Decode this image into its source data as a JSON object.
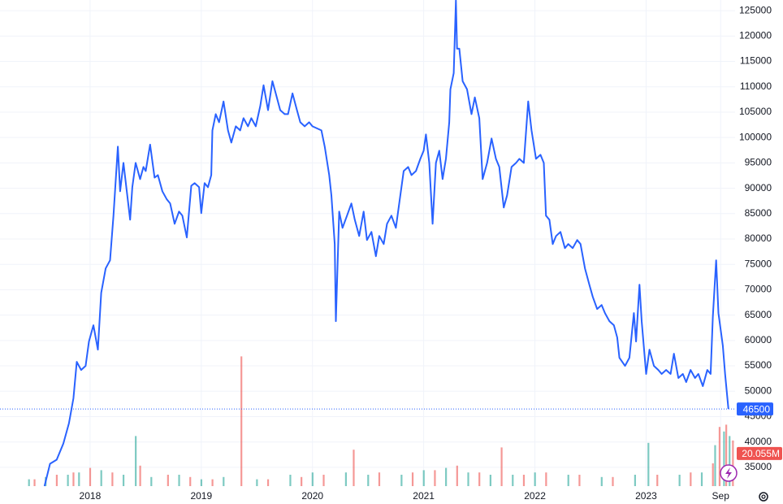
{
  "chart_data": {
    "type": "line",
    "series": [
      {
        "color": "#2962ff",
        "x": [
          2017.59,
          2017.64,
          2017.7,
          2017.76,
          2017.81,
          2017.85,
          2017.88,
          2017.92,
          2017.96,
          2017.99,
          2018.03,
          2018.07,
          2018.1,
          2018.14,
          2018.18,
          2018.21,
          2018.25,
          2018.27,
          2018.3,
          2018.33,
          2018.36,
          2018.38,
          2018.41,
          2018.45,
          2018.48,
          2018.5,
          2018.54,
          2018.58,
          2018.61,
          2018.65,
          2018.69,
          2018.72,
          2018.76,
          2018.8,
          2018.83,
          2018.87,
          2018.91,
          2018.94,
          2018.98,
          2019.0,
          2019.03,
          2019.06,
          2019.09,
          2019.1,
          2019.13,
          2019.16,
          2019.2,
          2019.24,
          2019.27,
          2019.31,
          2019.35,
          2019.38,
          2019.42,
          2019.45,
          2019.49,
          2019.53,
          2019.56,
          2019.6,
          2019.64,
          2019.67,
          2019.71,
          2019.75,
          2019.78,
          2019.82,
          2019.86,
          2019.89,
          2019.93,
          2019.97,
          2020.0,
          2020.08,
          2020.11,
          2020.15,
          2020.17,
          2020.2,
          2020.21,
          2020.24,
          2020.27,
          2020.31,
          2020.35,
          2020.38,
          2020.42,
          2020.46,
          2020.49,
          2020.53,
          2020.57,
          2020.6,
          2020.64,
          2020.67,
          2020.71,
          2020.75,
          2020.78,
          2020.82,
          2020.86,
          2020.89,
          2020.93,
          2020.97,
          2021.0,
          2021.02,
          2021.05,
          2021.08,
          2021.11,
          2021.14,
          2021.17,
          2021.2,
          2021.23,
          2021.24,
          2021.27,
          2021.29,
          2021.3,
          2021.32,
          2021.35,
          2021.39,
          2021.43,
          2021.46,
          2021.5,
          2021.53,
          2021.57,
          2021.61,
          2021.65,
          2021.68,
          2021.72,
          2021.75,
          2021.79,
          2021.83,
          2021.86,
          2021.9,
          2021.94,
          2021.97,
          2022.01,
          2022.05,
          2022.08,
          2022.1,
          2022.13,
          2022.16,
          2022.19,
          2022.23,
          2022.27,
          2022.3,
          2022.34,
          2022.38,
          2022.41,
          2022.45,
          2022.49,
          2022.52,
          2022.56,
          2022.6,
          2022.63,
          2022.67,
          2022.71,
          2022.74,
          2022.76,
          2022.81,
          2022.85,
          2022.89,
          2022.91,
          2022.94,
          2022.96,
          2023.0,
          2023.03,
          2023.07,
          2023.11,
          2023.14,
          2023.18,
          2023.22,
          2023.25,
          2023.29,
          2023.33,
          2023.36,
          2023.4,
          2023.44,
          2023.47,
          2023.51,
          2023.55,
          2023.58,
          2023.6,
          2023.63,
          2023.65,
          2023.67,
          2023.69,
          2023.71,
          2023.74
        ],
        "values": [
          31300,
          35700,
          36500,
          39700,
          43700,
          48600,
          55800,
          54200,
          55000,
          59800,
          63000,
          58200,
          69400,
          74200,
          75800,
          84600,
          98200,
          89400,
          95000,
          89400,
          83800,
          90200,
          95000,
          91800,
          94200,
          93400,
          98600,
          92100,
          92600,
          89400,
          87800,
          87000,
          83000,
          85400,
          84600,
          80300,
          90500,
          91000,
          90200,
          85100,
          91000,
          90200,
          92600,
          101400,
          104600,
          103000,
          107100,
          101400,
          99000,
          102200,
          101400,
          103800,
          102200,
          103800,
          102200,
          106200,
          110300,
          105400,
          111100,
          108700,
          105400,
          104600,
          104600,
          108700,
          105400,
          103000,
          102200,
          103000,
          102200,
          101400,
          98200,
          92600,
          88600,
          79000,
          63800,
          85400,
          82200,
          84600,
          87000,
          83800,
          80600,
          85400,
          79800,
          81400,
          76600,
          80600,
          79000,
          83000,
          84600,
          82200,
          87000,
          93400,
          94200,
          92600,
          93400,
          95800,
          97400,
          100600,
          95000,
          83000,
          95000,
          97400,
          91800,
          95800,
          103000,
          109500,
          112700,
          127000,
          117500,
          117500,
          111100,
          109500,
          104600,
          107900,
          103800,
          91800,
          95000,
          99800,
          95800,
          94200,
          86200,
          88600,
          94200,
          95000,
          95800,
          95000,
          107100,
          101400,
          95800,
          96600,
          95000,
          84600,
          83800,
          79000,
          80600,
          81400,
          78200,
          79000,
          78200,
          79800,
          79000,
          74200,
          71000,
          68600,
          66200,
          67000,
          65400,
          63800,
          63000,
          60600,
          56600,
          55000,
          56600,
          65400,
          59800,
          71000,
          63800,
          53400,
          58200,
          55000,
          54200,
          53400,
          54200,
          53400,
          57400,
          52600,
          53400,
          51800,
          54200,
          52600,
          53400,
          51000,
          54200,
          53400,
          64600,
          75800,
          65400,
          62200,
          59000,
          53400,
          46500
        ]
      }
    ],
    "xlim": [
      2017.19,
      2023.8
    ],
    "xticks": [
      2018,
      2019,
      2020,
      2021,
      2022,
      2023,
      {
        "value": 2023.67,
        "label": "Sep"
      }
    ],
    "ylim": [
      31300,
      127100
    ],
    "yticks": [
      35000,
      40000,
      45000,
      50000,
      55000,
      60000,
      65000,
      70000,
      75000,
      80000,
      85000,
      90000,
      95000,
      100000,
      105000,
      110000,
      115000,
      120000,
      125000
    ],
    "grid": true,
    "last_value_line": true,
    "volume": {
      "ylim": [
        0,
        60000000
      ],
      "opacity": 0.6,
      "series": [
        {
          "color": "#26a69a",
          "x": [
            2017.45,
            2017.6,
            2017.8,
            2017.9,
            2018.1,
            2018.3,
            2018.41,
            2018.55,
            2018.8,
            2019.0,
            2019.2,
            2019.5,
            2019.8,
            2020.0,
            2020.3,
            2020.5,
            2020.8,
            2021.0,
            2021.2,
            2021.4,
            2021.6,
            2021.8,
            2022.0,
            2022.3,
            2022.6,
            2022.9,
            2023.02,
            2023.3,
            2023.5,
            2023.62,
            2023.7,
            2023.75
          ],
          "values": [
            3000000,
            4000000,
            5000000,
            6000000,
            7000000,
            5000000,
            22000000,
            4000000,
            5000000,
            3000000,
            4000000,
            3000000,
            5000000,
            6000000,
            6000000,
            5000000,
            5000000,
            7000000,
            8000000,
            6000000,
            5000000,
            5000000,
            6000000,
            5000000,
            4000000,
            5000000,
            19000000,
            5000000,
            6000000,
            18000000,
            24000000,
            22000000
          ]
        },
        {
          "color": "#ef5350",
          "x": [
            2017.5,
            2017.7,
            2017.85,
            2018.0,
            2018.2,
            2018.45,
            2018.7,
            2018.9,
            2019.1,
            2019.36,
            2019.6,
            2019.9,
            2020.1,
            2020.37,
            2020.6,
            2020.9,
            2021.1,
            2021.3,
            2021.5,
            2021.7,
            2021.9,
            2022.1,
            2022.4,
            2022.7,
            2023.1,
            2023.4,
            2023.6,
            2023.66,
            2023.72,
            2023.78
          ],
          "values": [
            3000000,
            5000000,
            6000000,
            8000000,
            6000000,
            9000000,
            5000000,
            4000000,
            3000000,
            57000000,
            3000000,
            4000000,
            5000000,
            16000000,
            6000000,
            6000000,
            7000000,
            9000000,
            6000000,
            17000000,
            5000000,
            6000000,
            5000000,
            4000000,
            5000000,
            6000000,
            10000000,
            26000000,
            27000000,
            20055000
          ],
          "value_labels": [
            null,
            null,
            null,
            null,
            null,
            null,
            null,
            null,
            null,
            null,
            null,
            null,
            null,
            null,
            null,
            null,
            null,
            null,
            null,
            null,
            null,
            null,
            null,
            null,
            null,
            null,
            null,
            null,
            null,
            "20.055M"
          ]
        }
      ]
    }
  }
}
